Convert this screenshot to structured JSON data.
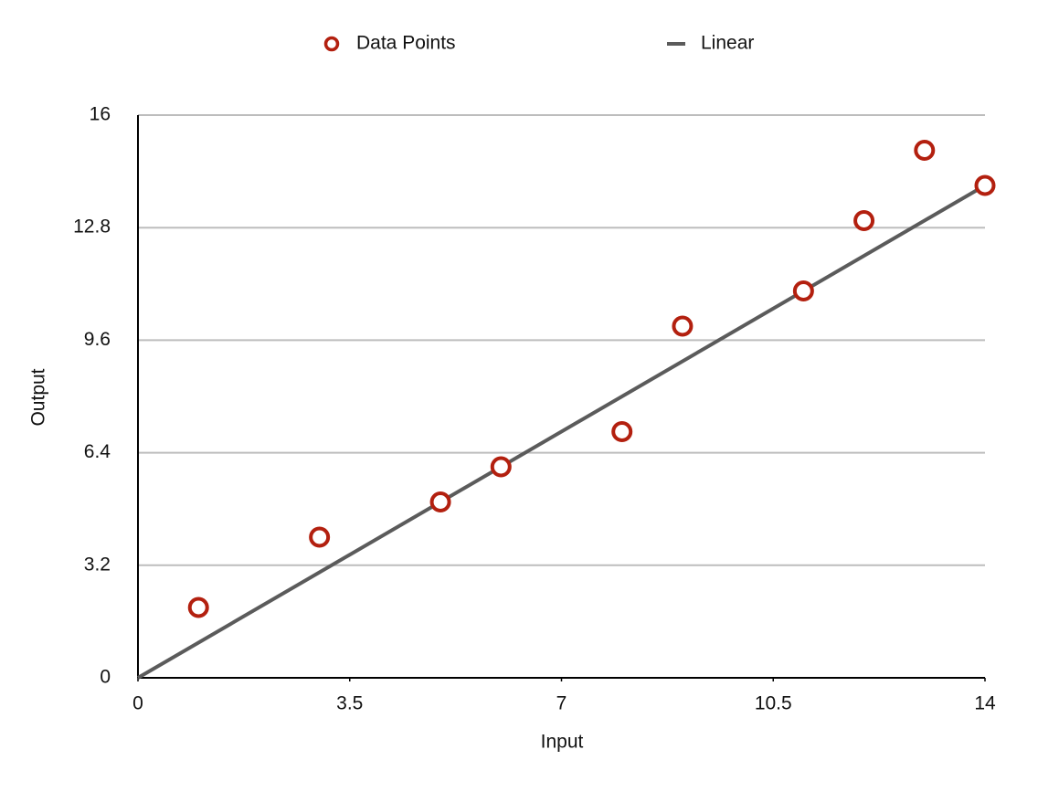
{
  "chart_data": {
    "type": "scatter",
    "x_label": "Input",
    "y_label": "Output",
    "xlim": [
      0,
      14
    ],
    "xticks": [
      0,
      3.5,
      7,
      10.5,
      14
    ],
    "ylim": [
      0,
      16
    ],
    "yticks": [
      0,
      3.2,
      6.4,
      9.6,
      12.8,
      16
    ],
    "grid": true,
    "legend": "top",
    "series": [
      {
        "name": "Data Points",
        "type": "scatter",
        "color": "#b3200f",
        "x": [
          1,
          3,
          5,
          6,
          8,
          9,
          11,
          12,
          13,
          14
        ],
        "values": [
          2,
          4,
          5,
          6,
          7,
          10,
          11,
          13,
          15,
          14
        ]
      },
      {
        "name": "Linear",
        "type": "line",
        "color": "#5b5b5b",
        "x": [
          0,
          14
        ],
        "values": [
          0,
          14
        ]
      }
    ]
  }
}
